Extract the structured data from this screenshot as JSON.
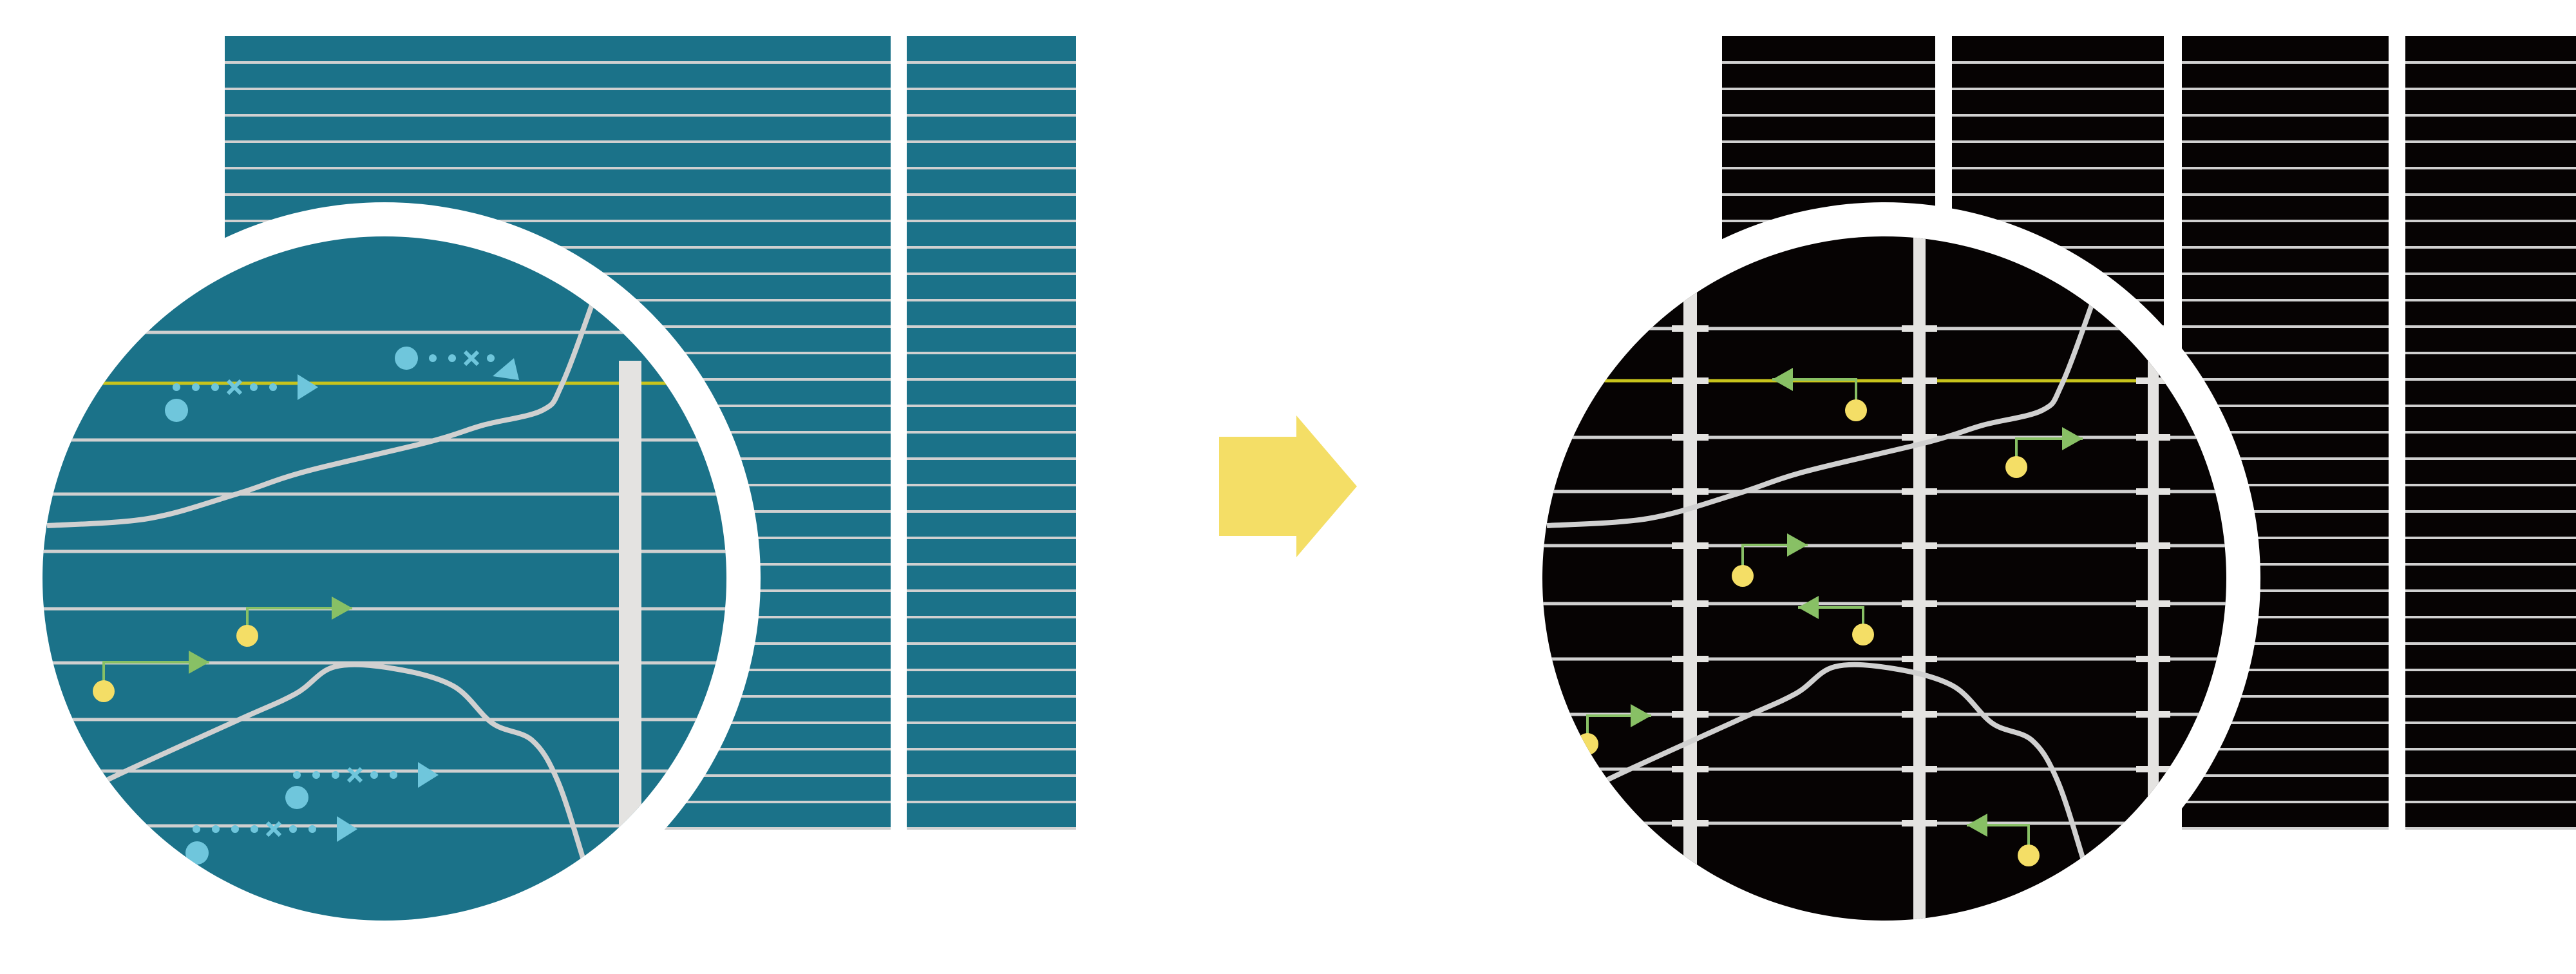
{
  "colors": {
    "background": "#ffffff",
    "before_panel": "#1b7289",
    "after_panel": "#060303",
    "grid_line": "#d0d0d0",
    "vertical_bar": "#e4e3e1",
    "highlight_line": "#c8c41c",
    "blue_marker": "#6fc6dc",
    "green_arrow": "#88c065",
    "yellow_dot": "#f4de66",
    "transition_arrow": "#f4de66",
    "ring": "#ffffff"
  },
  "icons": [
    "dotted-arrow-icon",
    "cross-icon",
    "elbow-arrow-icon",
    "right-arrow-icon"
  ]
}
